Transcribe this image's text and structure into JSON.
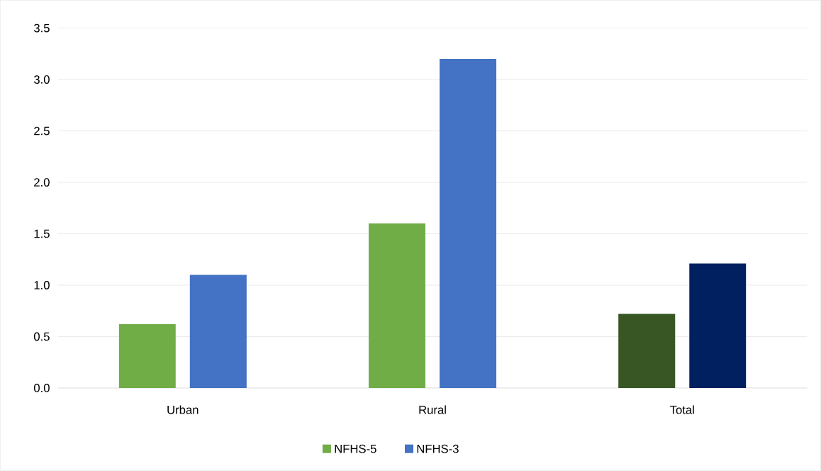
{
  "chart_data": {
    "type": "bar",
    "categories": [
      "Urban",
      "Rural",
      "Total"
    ],
    "series": [
      {
        "name": "NFHS-5",
        "color": "#70ad47",
        "colors": [
          "#70ad47",
          "#70ad47",
          "#375623"
        ],
        "values": [
          0.62,
          1.6,
          0.72
        ]
      },
      {
        "name": "NFHS-3",
        "color": "#4472c4",
        "colors": [
          "#4472c4",
          "#4472c4",
          "#002060"
        ],
        "values": [
          1.1,
          3.2,
          1.21
        ]
      }
    ],
    "ylim": [
      0,
      3.5
    ],
    "yticks": [
      {
        "value": 0,
        "label": "0.0"
      },
      0.5,
      {
        "value": 1,
        "label": "1.0"
      },
      1.5,
      {
        "value": 2,
        "label": "2.0"
      },
      2.5,
      {
        "value": 3,
        "label": "3.0"
      },
      3.5
    ],
    "grid": "y",
    "legend": "bottom"
  }
}
